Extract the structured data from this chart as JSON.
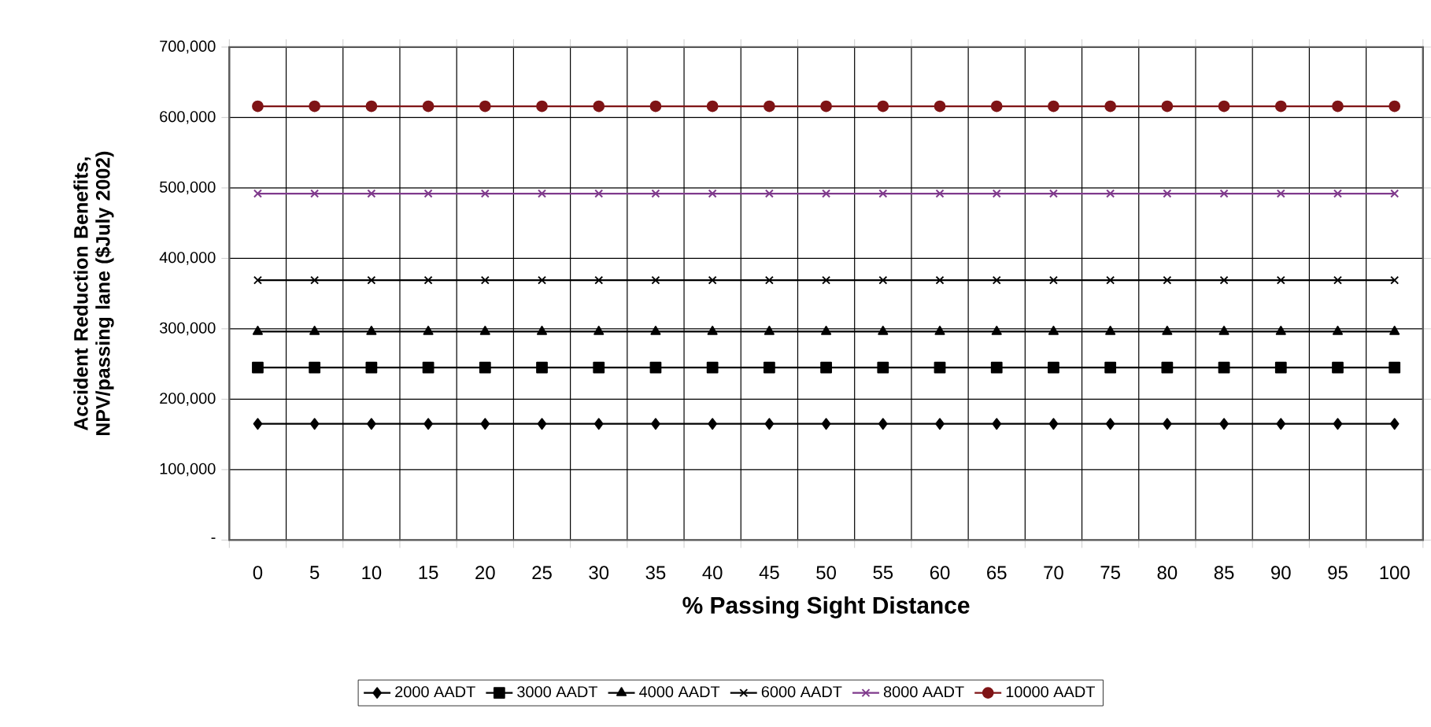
{
  "chart_data": {
    "type": "line",
    "xlabel": "% Passing Sight Distance",
    "ylabel": "Accident Reduction Benefits, NPV/passing lane ($July 2002)",
    "categories": [
      "0",
      "5",
      "10",
      "15",
      "20",
      "25",
      "30",
      "35",
      "40",
      "45",
      "50",
      "55",
      "60",
      "65",
      "70",
      "75",
      "80",
      "85",
      "90",
      "95",
      "100"
    ],
    "ylim": [
      0,
      700000
    ],
    "yticks": [
      {
        "value": 0,
        "label": "-"
      },
      {
        "value": 100000,
        "label": "100,000"
      },
      {
        "value": 200000,
        "label": "200,000"
      },
      {
        "value": 300000,
        "label": "300,000"
      },
      {
        "value": 400000,
        "label": "400,000"
      },
      {
        "value": 500000,
        "label": "500,000"
      },
      {
        "value": 600000,
        "label": "600,000"
      },
      {
        "value": 700000,
        "label": "700,000"
      }
    ],
    "grid": true,
    "legend": "bottom",
    "series": [
      {
        "name": "2000 AADT",
        "color": "#000000",
        "marker": "diamond",
        "values": [
          165000,
          165000,
          165000,
          165000,
          165000,
          165000,
          165000,
          165000,
          165000,
          165000,
          165000,
          165000,
          165000,
          165000,
          165000,
          165000,
          165000,
          165000,
          165000,
          165000,
          165000
        ]
      },
      {
        "name": "3000 AADT",
        "color": "#000000",
        "marker": "square",
        "values": [
          245000,
          245000,
          245000,
          245000,
          245000,
          245000,
          245000,
          245000,
          245000,
          245000,
          245000,
          245000,
          245000,
          245000,
          245000,
          245000,
          245000,
          245000,
          245000,
          245000,
          245000
        ]
      },
      {
        "name": "4000 AADT",
        "color": "#000000",
        "marker": "triangle",
        "values": [
          296000,
          296000,
          296000,
          296000,
          296000,
          296000,
          296000,
          296000,
          296000,
          296000,
          296000,
          296000,
          296000,
          296000,
          296000,
          296000,
          296000,
          296000,
          296000,
          296000,
          296000
        ]
      },
      {
        "name": "6000 AADT",
        "color": "#000000",
        "marker": "cross",
        "values": [
          369000,
          369000,
          369000,
          369000,
          369000,
          369000,
          369000,
          369000,
          369000,
          369000,
          369000,
          369000,
          369000,
          369000,
          369000,
          369000,
          369000,
          369000,
          369000,
          369000,
          369000
        ]
      },
      {
        "name": "8000 AADT",
        "color": "#7f3a8c",
        "marker": "cross",
        "values": [
          492000,
          492000,
          492000,
          492000,
          492000,
          492000,
          492000,
          492000,
          492000,
          492000,
          492000,
          492000,
          492000,
          492000,
          492000,
          492000,
          492000,
          492000,
          492000,
          492000,
          492000
        ]
      },
      {
        "name": "10000 AADT",
        "color": "#7f1416",
        "marker": "circle",
        "values": [
          616000,
          616000,
          616000,
          616000,
          616000,
          616000,
          616000,
          616000,
          616000,
          616000,
          616000,
          616000,
          616000,
          616000,
          616000,
          616000,
          616000,
          616000,
          616000,
          616000,
          616000
        ]
      }
    ]
  }
}
